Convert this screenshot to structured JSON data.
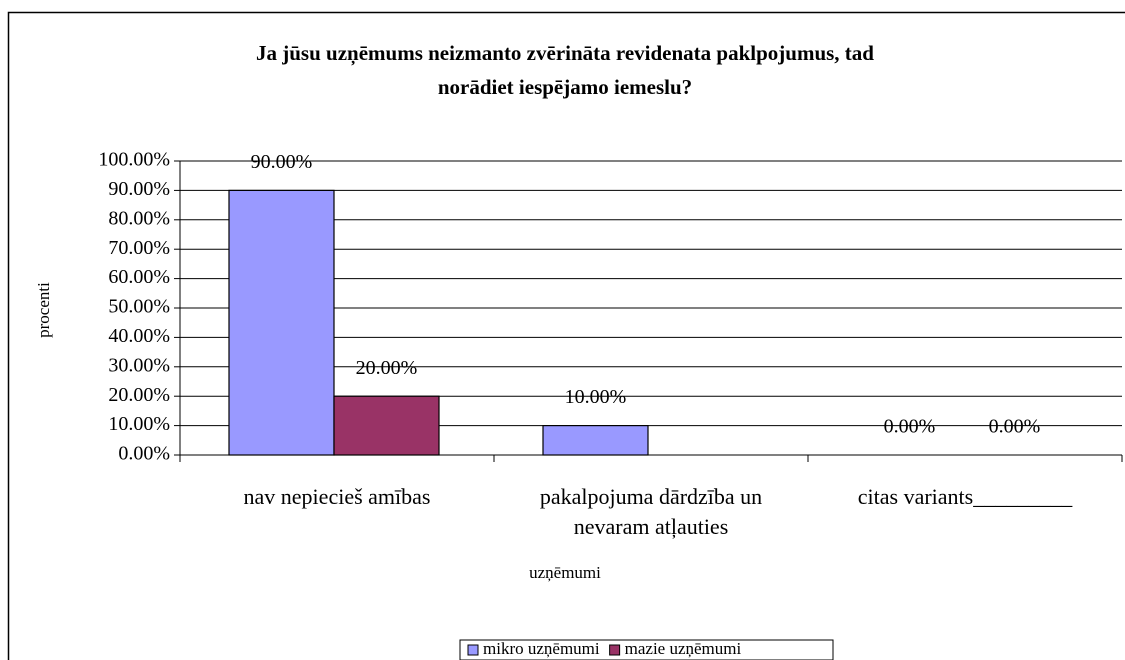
{
  "chart_data": {
    "type": "bar",
    "title": "Ja jūsu uzņēmums neizmanto zvērināta revidenata paklpojumus, tad norādiet iespējamo iemeslu?",
    "xlabel": "uzņēmumi",
    "ylabel": "procenti",
    "categories": [
      "nav nepiecieš amības",
      "pakalpojuma dārdzība un nevaram atļauties",
      "citas variants_________"
    ],
    "series": [
      {
        "name": "mikro uzņēmumi",
        "color": "#9999ff",
        "values": [
          90,
          10,
          0
        ],
        "value_labels": [
          "90.00%",
          "10.00%",
          "0.00%"
        ]
      },
      {
        "name": "mazie uzņēmumi",
        "color": "#993366",
        "values": [
          20,
          null,
          0
        ],
        "value_labels": [
          "20.00%",
          null,
          "0.00%"
        ]
      }
    ],
    "ylim": [
      0,
      100
    ],
    "yticks": [
      {
        "value": 0,
        "label": "0.00%"
      },
      {
        "value": 10,
        "label": "10.00%"
      },
      {
        "value": 20,
        "label": "20.00%"
      },
      {
        "value": 30,
        "label": "30.00%"
      },
      {
        "value": 40,
        "label": "40.00%"
      },
      {
        "value": 50,
        "label": "50.00%"
      },
      {
        "value": 60,
        "label": "60.00%"
      },
      {
        "value": 70,
        "label": "70.00%"
      },
      {
        "value": 80,
        "label": "80.00%"
      },
      {
        "value": 90,
        "label": "90.00%"
      },
      {
        "value": 100,
        "label": "100.00%"
      }
    ],
    "grid": true,
    "legend": "bottom"
  }
}
